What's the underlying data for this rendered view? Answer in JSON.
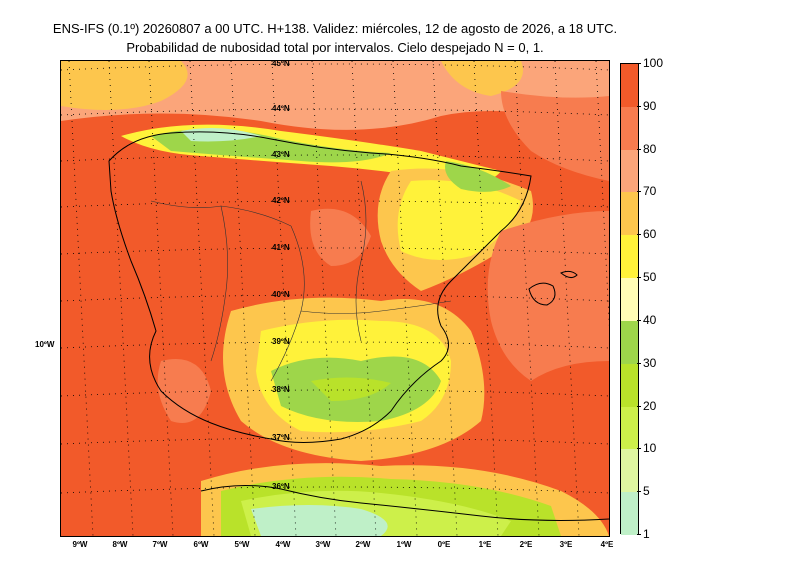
{
  "header": {
    "title_line1": "ENS-IFS (0.1º) 20260807 a 00 UTC. H+138. Validez: miércoles, 12 de agosto de 2026, a 18 UTC.",
    "title_line2": "Probabilidad de nubosidad total por intervalos. Cielo despejado N = 0, 1."
  },
  "map": {
    "lat_labels": [
      "45ºN",
      "44ºN",
      "43ºN",
      "42ºN",
      "41ºN",
      "40ºN",
      "39ºN",
      "38ºN",
      "37ºN",
      "36ºN"
    ],
    "lon_labels": [
      "9ºW",
      "8ºW",
      "7ºW",
      "6ºW",
      "5ºW",
      "4ºW",
      "3ºW",
      "2ºW",
      "1ºW",
      "0ºE",
      "1ºE",
      "2ºE",
      "3ºE",
      "4ºE"
    ],
    "side_label": "10ºW"
  },
  "colorbar": {
    "labels": [
      "100",
      "90",
      "80",
      "70",
      "60",
      "50",
      "40",
      "30",
      "20",
      "10",
      "5",
      "1"
    ],
    "colors": [
      "#f25a2a",
      "#f77c4f",
      "#fba57a",
      "#fdc64d",
      "#fff23a",
      "#fffcb6",
      "#9ed64a",
      "#b9e22a",
      "#cdf04a",
      "#dff6a0",
      "#bff0c8"
    ]
  }
}
